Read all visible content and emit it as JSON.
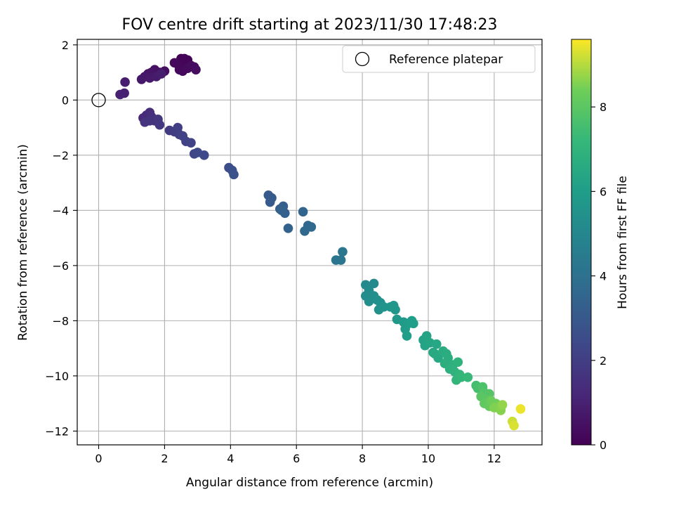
{
  "chart_data": {
    "type": "scatter",
    "title": "FOV centre drift starting at 2023/11/30 17:48:23",
    "xlabel": "Angular distance from reference (arcmin)",
    "ylabel": "Rotation from reference (arcmin)",
    "colorbar_label": "Hours from first FF file",
    "colormap": "viridis",
    "xlim": [
      -0.65,
      13.45
    ],
    "ylim": [
      -12.5,
      2.2
    ],
    "clim": [
      0,
      9.6
    ],
    "xticks": [
      0,
      2,
      4,
      6,
      8,
      10,
      12
    ],
    "yticks": [
      2,
      0,
      -2,
      -4,
      -6,
      -8,
      -10,
      -12
    ],
    "cticks": [
      0,
      2,
      4,
      6,
      8
    ],
    "xtick_labels": [
      "0",
      "2",
      "4",
      "6",
      "8",
      "10",
      "12"
    ],
    "ytick_labels": [
      "2",
      "0",
      "−2",
      "−4",
      "−6",
      "−8",
      "−10",
      "−12"
    ],
    "ctick_labels": [
      "0",
      "2",
      "4",
      "6",
      "8"
    ],
    "grid": true,
    "legend": {
      "position": "top-right",
      "entries": [
        "Reference platepar"
      ]
    },
    "reference": {
      "x": 0,
      "y": 0
    },
    "points": [
      [
        2.5,
        1.5,
        0.02
      ],
      [
        2.6,
        1.5,
        0.05
      ],
      [
        2.7,
        1.45,
        0.08
      ],
      [
        2.55,
        1.35,
        0.1
      ],
      [
        2.65,
        1.3,
        0.12
      ],
      [
        2.5,
        1.2,
        0.15
      ],
      [
        2.4,
        1.3,
        0.18
      ],
      [
        2.3,
        1.35,
        0.2
      ],
      [
        2.45,
        1.1,
        0.22
      ],
      [
        2.55,
        1.05,
        0.25
      ],
      [
        2.7,
        1.15,
        0.28
      ],
      [
        2.8,
        1.25,
        0.3
      ],
      [
        2.9,
        1.2,
        0.32
      ],
      [
        2.95,
        1.1,
        0.35
      ],
      [
        2.0,
        1.05,
        0.4
      ],
      [
        1.85,
        1.0,
        0.45
      ],
      [
        1.7,
        1.1,
        0.5
      ],
      [
        1.6,
        1.0,
        0.55
      ],
      [
        1.5,
        0.95,
        0.6
      ],
      [
        1.4,
        0.85,
        0.65
      ],
      [
        1.3,
        0.75,
        0.7
      ],
      [
        1.55,
        0.8,
        0.75
      ],
      [
        1.75,
        0.85,
        0.8
      ],
      [
        1.9,
        0.95,
        0.85
      ],
      [
        0.8,
        0.65,
        0.9
      ],
      [
        0.78,
        0.25,
        0.95
      ],
      [
        0.65,
        0.2,
        1.0
      ],
      [
        1.35,
        -0.65,
        1.2
      ],
      [
        1.45,
        -0.55,
        1.3
      ],
      [
        1.55,
        -0.45,
        1.4
      ],
      [
        1.6,
        -0.6,
        1.5
      ],
      [
        1.7,
        -0.75,
        1.55
      ],
      [
        1.4,
        -0.8,
        1.6
      ],
      [
        1.55,
        -0.75,
        1.65
      ],
      [
        1.8,
        -0.7,
        1.7
      ],
      [
        1.85,
        -0.9,
        1.75
      ],
      [
        2.15,
        -1.1,
        1.9
      ],
      [
        2.3,
        -1.15,
        1.95
      ],
      [
        2.4,
        -1.0,
        2.0
      ],
      [
        2.45,
        -1.25,
        2.05
      ],
      [
        2.55,
        -1.3,
        2.1
      ],
      [
        2.65,
        -1.5,
        2.15
      ],
      [
        2.8,
        -1.55,
        2.2
      ],
      [
        2.9,
        -1.95,
        2.3
      ],
      [
        3.0,
        -1.9,
        2.35
      ],
      [
        3.2,
        -2.0,
        2.4
      ],
      [
        3.95,
        -2.45,
        2.6
      ],
      [
        4.05,
        -2.55,
        2.65
      ],
      [
        4.1,
        -2.7,
        2.7
      ],
      [
        5.15,
        -3.45,
        3.0
      ],
      [
        5.25,
        -3.55,
        3.05
      ],
      [
        5.2,
        -3.7,
        3.1
      ],
      [
        5.5,
        -3.95,
        3.2
      ],
      [
        5.6,
        -3.85,
        3.25
      ],
      [
        5.65,
        -4.1,
        3.3
      ],
      [
        5.55,
        -4.0,
        3.35
      ],
      [
        5.75,
        -4.65,
        3.4
      ],
      [
        6.2,
        -4.05,
        3.5
      ],
      [
        6.35,
        -4.55,
        3.55
      ],
      [
        6.45,
        -4.6,
        3.6
      ],
      [
        6.25,
        -4.75,
        3.65
      ],
      [
        7.2,
        -5.8,
        4.2
      ],
      [
        7.35,
        -5.8,
        4.25
      ],
      [
        7.4,
        -5.5,
        4.3
      ],
      [
        8.1,
        -6.7,
        5.1
      ],
      [
        8.35,
        -6.65,
        5.15
      ],
      [
        8.2,
        -6.9,
        5.2
      ],
      [
        8.1,
        -7.1,
        5.25
      ],
      [
        8.2,
        -7.3,
        5.3
      ],
      [
        8.35,
        -7.1,
        5.35
      ],
      [
        8.45,
        -7.25,
        5.4
      ],
      [
        8.55,
        -7.35,
        5.45
      ],
      [
        8.5,
        -7.6,
        5.5
      ],
      [
        8.65,
        -7.5,
        5.55
      ],
      [
        8.85,
        -7.5,
        5.6
      ],
      [
        8.95,
        -7.45,
        5.65
      ],
      [
        9.0,
        -7.6,
        5.7
      ],
      [
        9.05,
        -7.95,
        5.8
      ],
      [
        9.25,
        -8.05,
        5.85
      ],
      [
        9.3,
        -8.3,
        5.9
      ],
      [
        9.4,
        -8.1,
        5.95
      ],
      [
        9.5,
        -8.0,
        6.0
      ],
      [
        9.35,
        -8.55,
        6.0
      ],
      [
        9.55,
        -8.1,
        6.05
      ],
      [
        9.85,
        -8.7,
        6.2
      ],
      [
        9.9,
        -8.9,
        6.25
      ],
      [
        9.95,
        -8.55,
        6.3
      ],
      [
        10.05,
        -8.8,
        6.35
      ],
      [
        10.15,
        -9.15,
        6.4
      ],
      [
        10.25,
        -8.85,
        6.45
      ],
      [
        10.3,
        -9.35,
        6.5
      ],
      [
        10.2,
        -9.2,
        6.55
      ],
      [
        10.45,
        -9.1,
        6.6
      ],
      [
        10.55,
        -9.2,
        6.65
      ],
      [
        10.6,
        -9.35,
        6.7
      ],
      [
        10.5,
        -9.55,
        6.75
      ],
      [
        10.65,
        -9.75,
        6.8
      ],
      [
        10.75,
        -9.6,
        6.85
      ],
      [
        10.8,
        -9.85,
        6.9
      ],
      [
        10.9,
        -9.5,
        6.95
      ],
      [
        10.85,
        -10.15,
        7.05
      ],
      [
        10.95,
        -9.95,
        7.1
      ],
      [
        11.0,
        -10.05,
        7.15
      ],
      [
        11.2,
        -10.05,
        7.25
      ],
      [
        11.45,
        -10.35,
        7.5
      ],
      [
        11.5,
        -10.45,
        7.6
      ],
      [
        11.65,
        -10.4,
        7.7
      ],
      [
        11.7,
        -10.6,
        7.8
      ],
      [
        11.85,
        -10.65,
        7.9
      ],
      [
        11.6,
        -10.75,
        7.95
      ],
      [
        11.75,
        -10.85,
        8.0
      ],
      [
        11.7,
        -11.0,
        8.1
      ],
      [
        11.85,
        -11.1,
        8.2
      ],
      [
        11.9,
        -10.9,
        8.3
      ],
      [
        12.05,
        -11.0,
        8.4
      ],
      [
        12.15,
        -11.1,
        8.5
      ],
      [
        12.0,
        -11.15,
        8.55
      ],
      [
        12.2,
        -11.25,
        8.6
      ],
      [
        12.25,
        -11.05,
        8.7
      ],
      [
        12.55,
        -11.65,
        9.2
      ],
      [
        12.6,
        -11.8,
        9.3
      ],
      [
        12.8,
        -11.2,
        9.45
      ]
    ]
  }
}
